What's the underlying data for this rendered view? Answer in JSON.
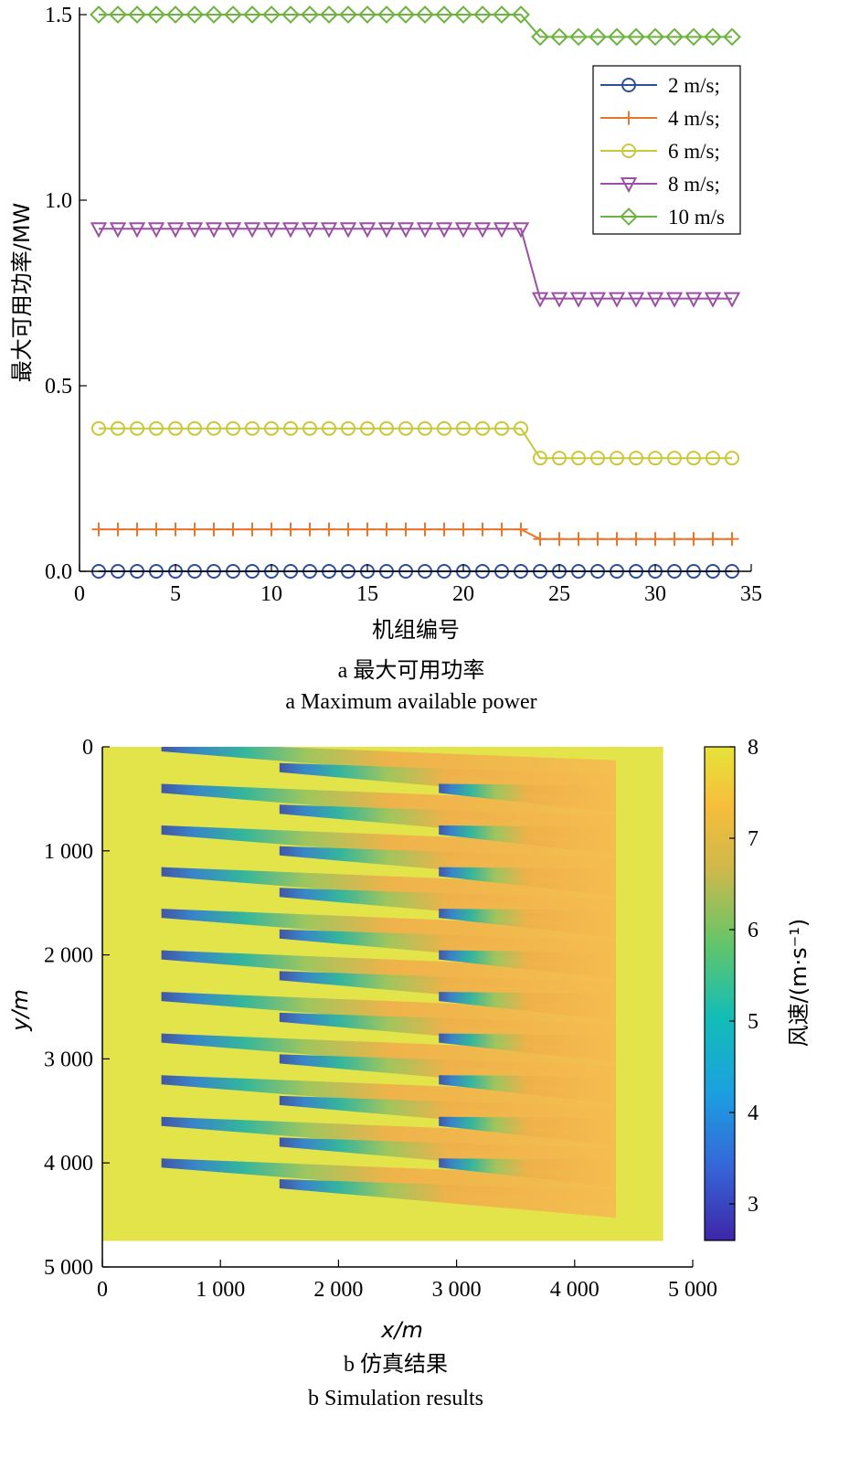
{
  "chart_data": [
    {
      "type": "line",
      "xlabel": "机组编号",
      "ylabel": "最大可用功率/MW",
      "xlim": [
        0,
        35
      ],
      "ylim": [
        0,
        1.5
      ],
      "xticks": [
        "0",
        "5",
        "10",
        "15",
        "20",
        "25",
        "30",
        "35"
      ],
      "yticks": [
        "0.0",
        "0.5",
        "1.0",
        "1.5"
      ],
      "x": [
        1,
        2,
        3,
        4,
        5,
        6,
        7,
        8,
        9,
        10,
        11,
        12,
        13,
        14,
        15,
        16,
        17,
        18,
        19,
        20,
        21,
        22,
        23,
        24,
        25,
        26,
        27,
        28,
        29,
        30,
        31,
        32,
        33,
        34
      ],
      "series": [
        {
          "name": "2 m/s;",
          "color": "#2c4ea0",
          "marker": "circle",
          "values": [
            0,
            0,
            0,
            0,
            0,
            0,
            0,
            0,
            0,
            0,
            0,
            0,
            0,
            0,
            0,
            0,
            0,
            0,
            0,
            0,
            0,
            0,
            0,
            0,
            0,
            0,
            0,
            0,
            0,
            0,
            0,
            0,
            0,
            0
          ]
        },
        {
          "name": "4 m/s;",
          "color": "#e8762d",
          "marker": "plus",
          "values": [
            0.113,
            0.113,
            0.113,
            0.113,
            0.113,
            0.113,
            0.113,
            0.113,
            0.113,
            0.113,
            0.113,
            0.113,
            0.113,
            0.113,
            0.113,
            0.113,
            0.113,
            0.113,
            0.113,
            0.113,
            0.113,
            0.113,
            0.113,
            0.087,
            0.087,
            0.087,
            0.087,
            0.087,
            0.087,
            0.087,
            0.087,
            0.087,
            0.087,
            0.087
          ]
        },
        {
          "name": "6 m/s;",
          "color": "#c9c83a",
          "marker": "circle",
          "values": [
            0.385,
            0.385,
            0.385,
            0.385,
            0.385,
            0.385,
            0.385,
            0.385,
            0.385,
            0.385,
            0.385,
            0.385,
            0.385,
            0.385,
            0.385,
            0.385,
            0.385,
            0.385,
            0.385,
            0.385,
            0.385,
            0.385,
            0.385,
            0.305,
            0.305,
            0.305,
            0.305,
            0.305,
            0.305,
            0.305,
            0.305,
            0.305,
            0.305,
            0.305
          ]
        },
        {
          "name": "8 m/s;",
          "color": "#9b4fa5",
          "marker": "triangle-down",
          "values": [
            0.923,
            0.923,
            0.923,
            0.923,
            0.923,
            0.923,
            0.923,
            0.923,
            0.923,
            0.923,
            0.923,
            0.923,
            0.923,
            0.923,
            0.923,
            0.923,
            0.923,
            0.923,
            0.923,
            0.923,
            0.923,
            0.923,
            0.923,
            0.735,
            0.735,
            0.735,
            0.735,
            0.735,
            0.735,
            0.735,
            0.735,
            0.735,
            0.735,
            0.735
          ]
        },
        {
          "name": "10 m/s",
          "color": "#6db33f",
          "marker": "diamond",
          "values": [
            1.5,
            1.5,
            1.5,
            1.5,
            1.5,
            1.5,
            1.5,
            1.5,
            1.5,
            1.5,
            1.5,
            1.5,
            1.5,
            1.5,
            1.5,
            1.5,
            1.5,
            1.5,
            1.5,
            1.5,
            1.5,
            1.5,
            1.5,
            1.44,
            1.44,
            1.44,
            1.44,
            1.44,
            1.44,
            1.44,
            1.44,
            1.44,
            1.44,
            1.44
          ]
        }
      ],
      "legend": "top-right",
      "caption_cn": "a  最大可用功率",
      "caption_en": "a  Maximum available power"
    },
    {
      "type": "heatmap",
      "xlabel": "x/m",
      "ylabel": "y/m",
      "xlim": [
        0,
        5000
      ],
      "ylim": [
        0,
        5000
      ],
      "xticks": [
        "0",
        "1 000",
        "2 000",
        "3 000",
        "4 000",
        "5 000"
      ],
      "yticks": [
        "0",
        "1 000",
        "2 000",
        "3 000",
        "4 000",
        "5 000"
      ],
      "domain_extent": [
        4750,
        4750
      ],
      "freestream_speed": 8,
      "colorbar": {
        "label": "风速/(m·s⁻¹)",
        "range": [
          2.6,
          8
        ],
        "ticks": [
          "3",
          "4",
          "5",
          "6",
          "7",
          "8"
        ]
      },
      "background_color": "#e3e34a",
      "wake_colors": {
        "start": "#3a4fa8",
        "mid": "#2bb3a0",
        "end": "#f2b249"
      },
      "turbine_columns": [
        {
          "x": 500,
          "y": [
            0,
            400,
            800,
            1200,
            1600,
            2000,
            2400,
            2800,
            3200,
            3600,
            4000
          ]
        },
        {
          "x": 1500,
          "y": [
            200,
            600,
            1000,
            1400,
            1800,
            2200,
            2600,
            3000,
            3400,
            3800,
            4200
          ]
        },
        {
          "x": 2850,
          "y": [
            400,
            800,
            1200,
            1600,
            2000,
            2400,
            2800,
            3200,
            3600,
            4000
          ]
        }
      ],
      "wake_end_x": 4350,
      "caption_cn": "b  仿真结果",
      "caption_en": "b  Simulation results"
    }
  ]
}
